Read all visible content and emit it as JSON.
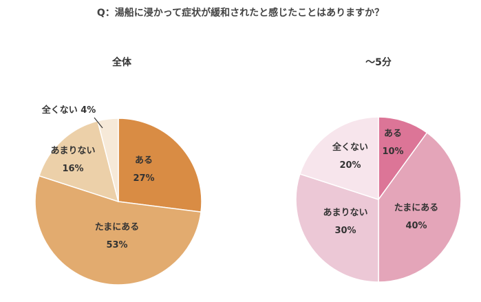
{
  "question": "Q：湯船に浸かって症状が緩和されたと感じたことはありますか？",
  "colors": {
    "left": [
      "#d98c44",
      "#e2ab6f",
      "#ecd0a9",
      "#f6e9d8"
    ],
    "right": [
      "#dc7597",
      "#e4a5b9",
      "#ecc8d6",
      "#f7e5ec"
    ]
  },
  "chart_data": [
    {
      "type": "pie",
      "title": "全体",
      "slices": [
        {
          "label": "ある",
          "value": 27,
          "value_label": "27%"
        },
        {
          "label": "たまにある",
          "value": 53,
          "value_label": "53%"
        },
        {
          "label": "あまりない",
          "value": 16,
          "value_label": "16%"
        },
        {
          "label": "全くない",
          "value": 4,
          "value_label": "4%"
        }
      ]
    },
    {
      "type": "pie",
      "title": "～5分",
      "slices": [
        {
          "label": "ある",
          "value": 10,
          "value_label": "10%"
        },
        {
          "label": "たまにある",
          "value": 40,
          "value_label": "40%"
        },
        {
          "label": "あまりない",
          "value": 30,
          "value_label": "30%"
        },
        {
          "label": "全くない",
          "value": 20,
          "value_label": "20%"
        }
      ]
    }
  ]
}
